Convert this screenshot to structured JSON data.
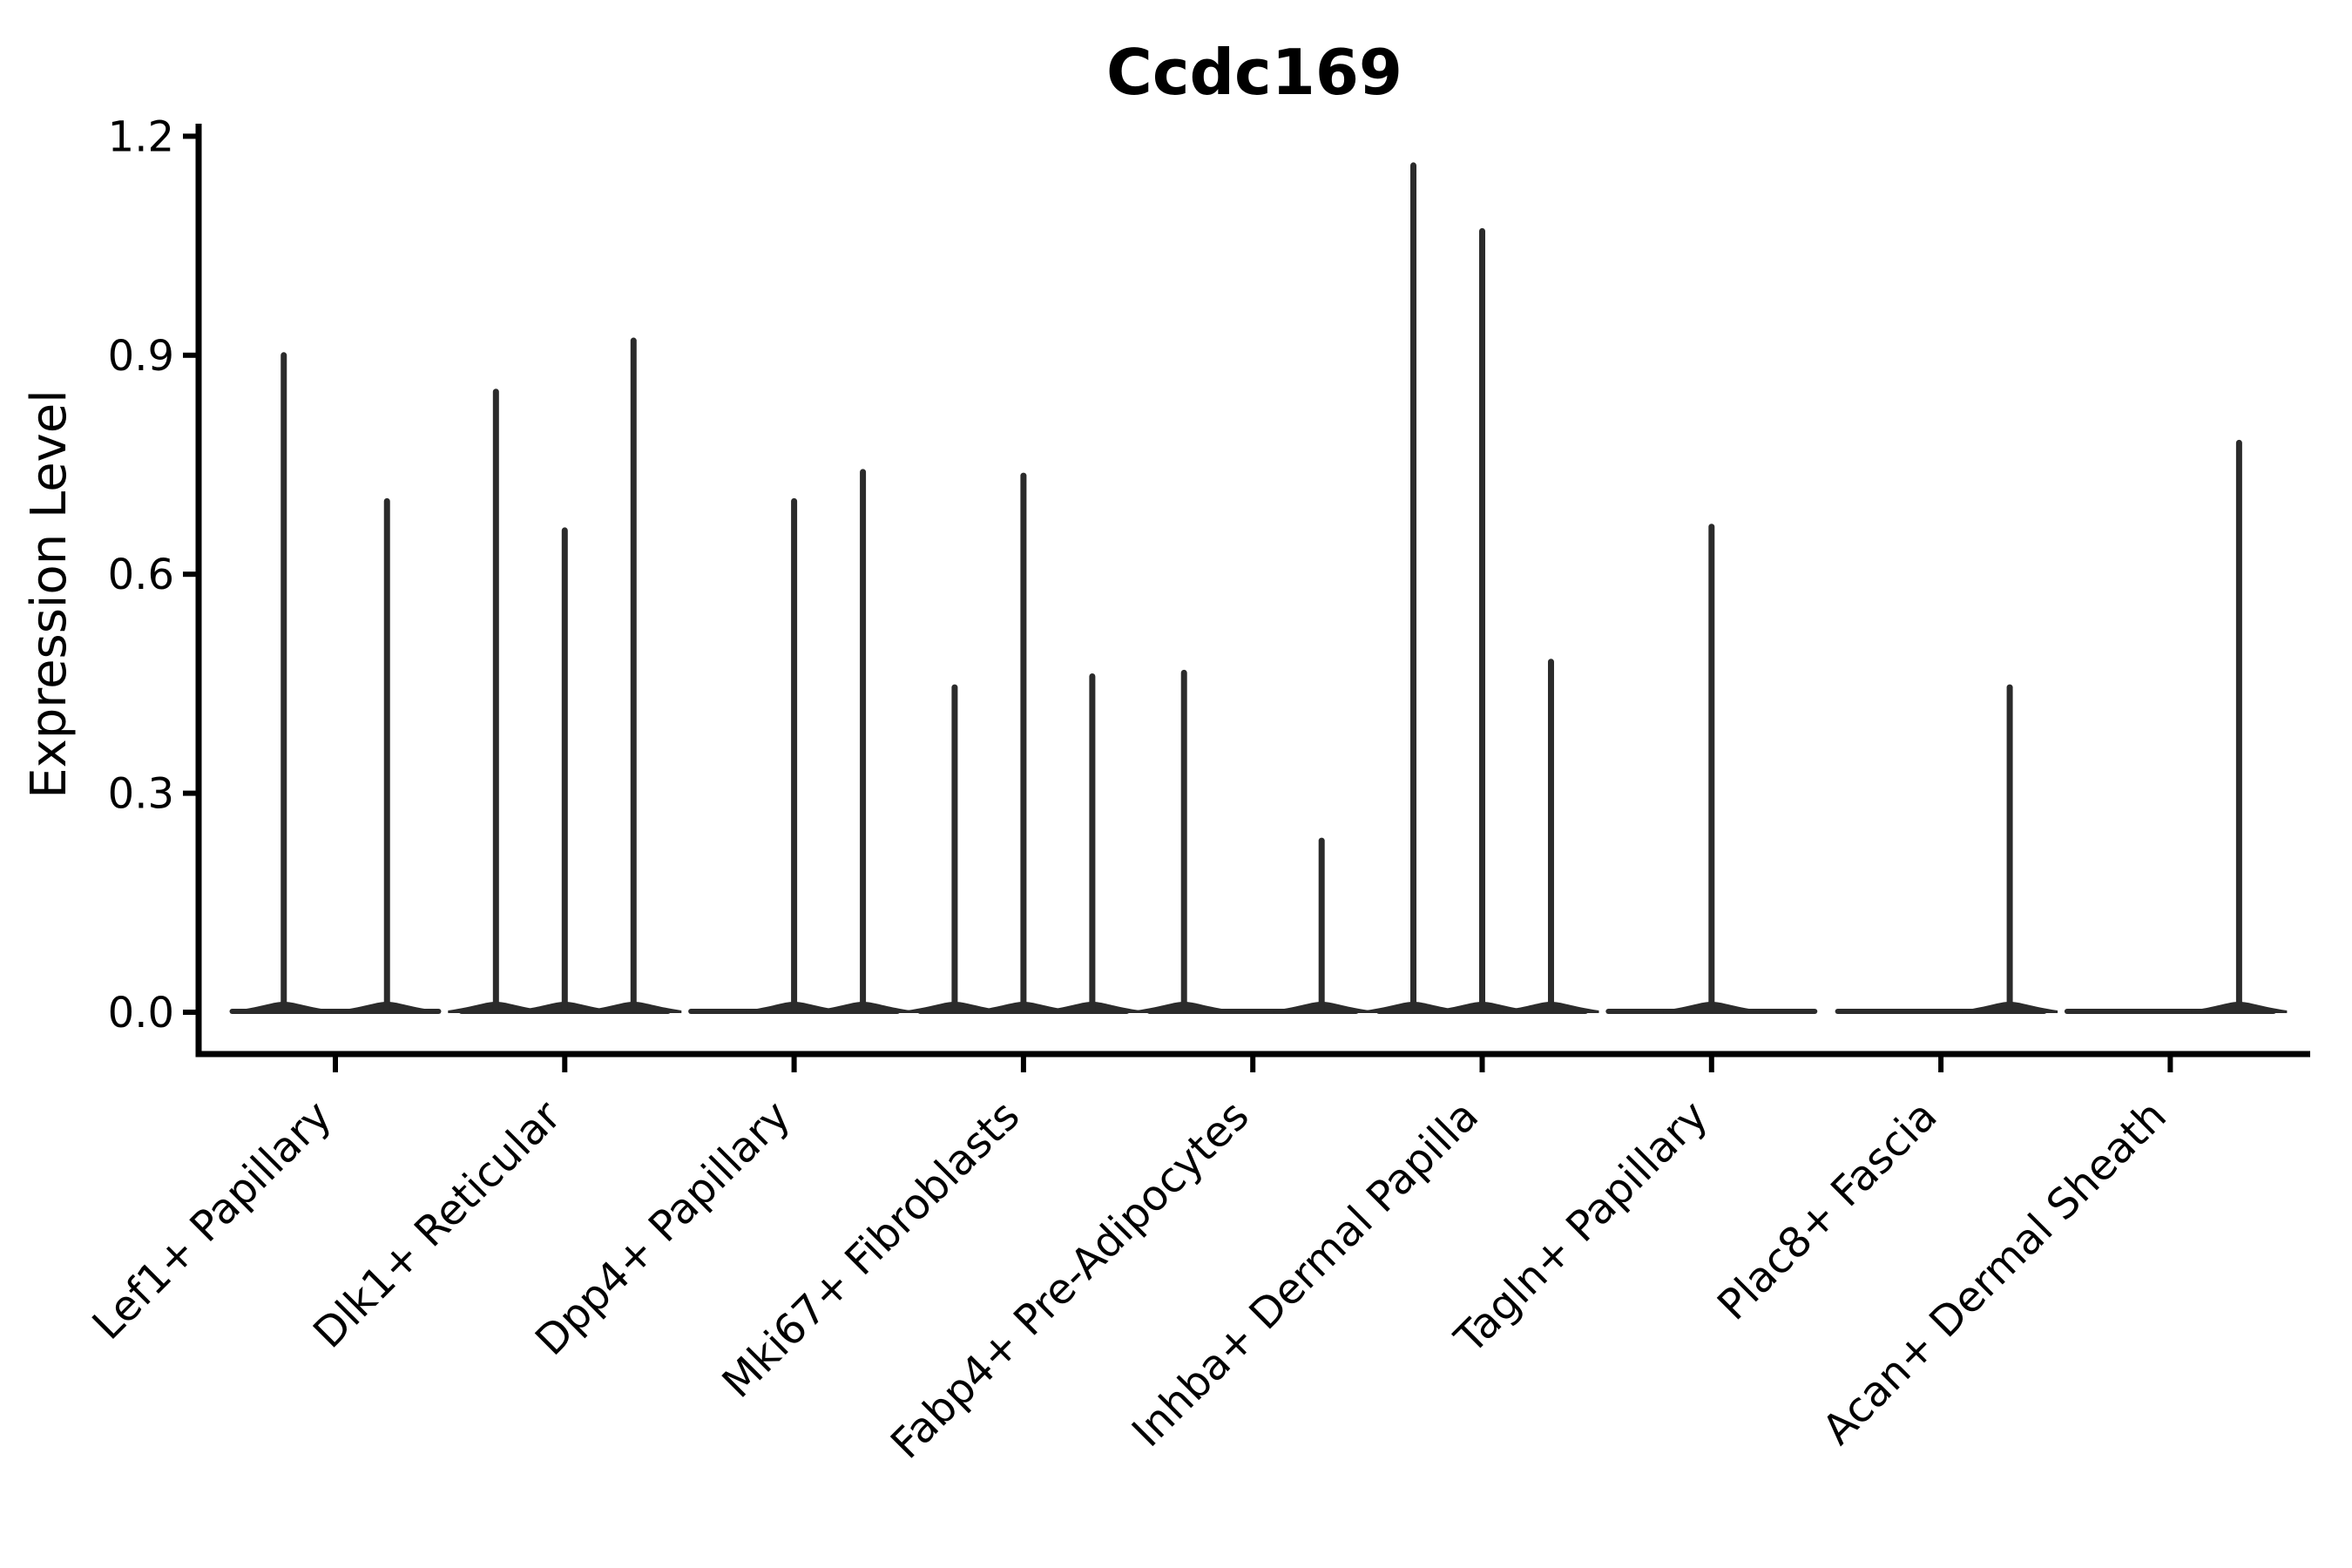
{
  "chart_data": {
    "type": "violin",
    "title": "Ccdc169",
    "xlabel": "",
    "ylabel": "Expression Level",
    "yticks": [
      0.0,
      0.3,
      0.6,
      0.9,
      1.2
    ],
    "ylim": [
      -0.057,
      1.217
    ],
    "grid": false,
    "legend": "none",
    "violin_color": "#2b2b2b",
    "axis_color": "#000000",
    "categories": [
      "Lef1+ Papillary",
      "Dlk1+ Reticular",
      "Dpp4+ Papillary",
      "Mki67+ Fibroblasts",
      "Fabp4+ Pre-Adipocytes",
      "Inhba+ Dermal Papilla",
      "Tagln+ Papillary",
      "Plac8+ Fascia",
      "Acan+ Dermal Sheath"
    ],
    "groups": [
      {
        "category": "Lef1+ Papillary",
        "spike_max_values": [
          0.9,
          0.7
        ]
      },
      {
        "category": "Dlk1+ Reticular",
        "spike_max_values": [
          0.85,
          0.66,
          0.92
        ]
      },
      {
        "category": "Dpp4+ Papillary",
        "spike_max_values": [
          0,
          0.7,
          0.74
        ]
      },
      {
        "category": "Mki67+ Fibroblasts",
        "spike_max_values": [
          0.445,
          0.735,
          0.46
        ]
      },
      {
        "category": "Fabp4+ Pre-Adipocytes",
        "spike_max_values": [
          0.465,
          0,
          0.235
        ]
      },
      {
        "category": "Inhba+ Dermal Papilla",
        "spike_max_values": [
          1.16,
          1.07,
          0.48
        ]
      },
      {
        "category": "Tagln+ Papillary",
        "spike_max_values": [
          0,
          0.665,
          0
        ]
      },
      {
        "category": "Plac8+ Fascia",
        "spike_max_values": [
          0,
          0,
          0.445
        ]
      },
      {
        "category": "Acan+ Dermal Sheath",
        "spike_max_values": [
          0,
          0,
          0.78
        ]
      }
    ]
  }
}
